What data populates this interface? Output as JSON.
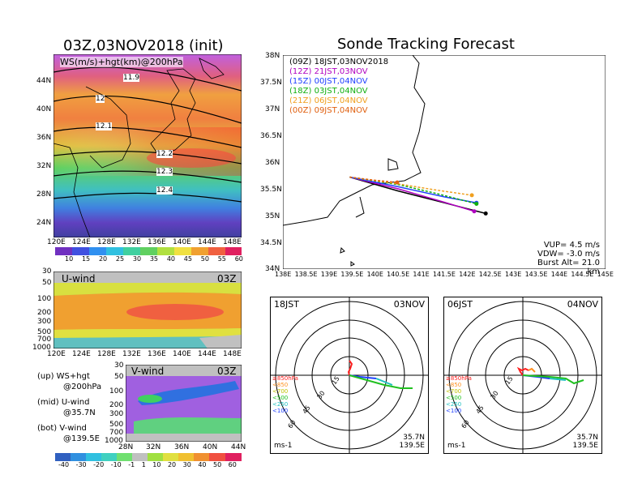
{
  "left": {
    "title": "03Z,03NOV2018 (init)",
    "map": {
      "label": "WS(m/s)+hgt(km)@200hPa",
      "lat_ticks": [
        "44N",
        "40N",
        "36N",
        "32N",
        "28N",
        "24N"
      ],
      "lon_ticks": [
        "120E",
        "124E",
        "128E",
        "132E",
        "136E",
        "140E",
        "144E",
        "148E"
      ],
      "contours": [
        "11.9",
        "12",
        "12.1",
        "12.2",
        "12.3",
        "12.4"
      ]
    },
    "ws_colorbar": [
      "10",
      "15",
      "20",
      "25",
      "30",
      "35",
      "40",
      "45",
      "50",
      "55",
      "60"
    ],
    "uwind": {
      "label": "U-wind",
      "time": "03Z",
      "p_ticks": [
        "30",
        "50",
        "100",
        "200",
        "300",
        "500",
        "700",
        "1000"
      ],
      "lon_ticks": [
        "120E",
        "124E",
        "128E",
        "132E",
        "136E",
        "140E",
        "144E",
        "148E"
      ]
    },
    "vwind": {
      "label": "V-wind",
      "time": "03Z",
      "p_ticks": [
        "30",
        "50",
        "100",
        "200",
        "300",
        "500",
        "700",
        "1000"
      ],
      "lat_ticks": [
        "28N",
        "32N",
        "36N",
        "40N",
        "44N"
      ]
    },
    "legend": {
      "up": "(up) WS+hgt",
      "up2": "@200hPa",
      "mid": "(mid) U-wind",
      "mid2": "@35.7N",
      "bot": "(bot) V-wind",
      "bot2": "@139.5E"
    },
    "wind_colorbar": [
      "-40",
      "-30",
      "-20",
      "-10",
      "-1",
      "1",
      "10",
      "20",
      "30",
      "40",
      "50",
      "60"
    ]
  },
  "tracking": {
    "title": "Sonde Tracking Forecast",
    "lat_ticks": [
      "38N",
      "37.5N",
      "37N",
      "36.5N",
      "36N",
      "35.5N",
      "35N",
      "34.5N",
      "34N"
    ],
    "lon_ticks": [
      "138E",
      "138.5E",
      "139E",
      "139.5E",
      "140E",
      "140.5E",
      "141E",
      "141.5E",
      "142E",
      "142.5E",
      "143E",
      "143.5E",
      "144E",
      "144.5E",
      "145E"
    ],
    "legend": [
      {
        "code": "(09Z)",
        "time": "18JST,03NOV2018",
        "color": "#000000"
      },
      {
        "code": "(12Z)",
        "time": "21JST,03NOV",
        "color": "#b000c0"
      },
      {
        "code": "(15Z)",
        "time": "00JST,04NOV",
        "color": "#2040ff"
      },
      {
        "code": "(18Z)",
        "time": "03JST,04NOV",
        "color": "#10b010"
      },
      {
        "code": "(21Z)",
        "time": "06JST,04NOV",
        "color": "#f0a020"
      },
      {
        "code": "(00Z)",
        "time": "09JST,04NOV",
        "color": "#e06010"
      }
    ],
    "info": {
      "vup": "VUP= 4.5 m/s",
      "vdw": "VDW= -3.0 m/s",
      "burst": "Burst Alt= 21.0 km"
    }
  },
  "hodographs": [
    {
      "time": "18JST",
      "date": "03NOV",
      "ring_labels": [
        "15",
        "30",
        "45",
        "60"
      ],
      "levels": [
        {
          "label": "≥850hPa",
          "color": "#ff2020"
        },
        {
          "label": "<850",
          "color": "#ff9020"
        },
        {
          "label": "<700",
          "color": "#e0e020"
        },
        {
          "label": "<500",
          "color": "#20c020"
        },
        {
          "label": "<250",
          "color": "#20c0c0"
        },
        {
          "label": "<100",
          "color": "#2040ff"
        }
      ],
      "units": "ms-1",
      "lat": "35.7N",
      "lon": "139.5E"
    },
    {
      "time": "06JST",
      "date": "04NOV",
      "ring_labels": [
        "15",
        "30",
        "45",
        "60"
      ],
      "levels": [
        {
          "label": "≥850hPa",
          "color": "#ff2020"
        },
        {
          "label": "<850",
          "color": "#ff9020"
        },
        {
          "label": "<700",
          "color": "#e0e020"
        },
        {
          "label": "<500",
          "color": "#20c020"
        },
        {
          "label": "<250",
          "color": "#20c0c0"
        },
        {
          "label": "<100",
          "color": "#2040ff"
        }
      ],
      "units": "ms-1",
      "lat": "35.7N",
      "lon": "139.5E"
    }
  ],
  "chart_data": [
    {
      "type": "line",
      "title": "Sonde Tracking Forecast",
      "xlabel": "",
      "ylabel": "",
      "xlim": [
        138,
        145
      ],
      "ylim": [
        34,
        38
      ],
      "series": [
        {
          "name": "(09Z) 18JST,03NOV2018",
          "x": [
            139.45,
            140.5,
            141.5,
            142.4
          ],
          "y": [
            35.72,
            35.46,
            35.24,
            35.04
          ]
        },
        {
          "name": "(12Z) 21JST,03NOV",
          "x": [
            139.45,
            140.5,
            141.5,
            142.15
          ],
          "y": [
            35.72,
            35.5,
            35.25,
            35.08
          ]
        },
        {
          "name": "(15Z) 00JST,04NOV",
          "x": [
            139.45,
            140.5,
            141.5,
            142.2
          ],
          "y": [
            35.72,
            35.54,
            35.35,
            35.24
          ]
        },
        {
          "name": "(18Z) 03JST,04NOV",
          "x": [
            139.45,
            140.5,
            141.3,
            142.2
          ],
          "y": [
            35.72,
            35.58,
            35.42,
            35.22
          ]
        },
        {
          "name": "(21Z) 06JST,04NOV",
          "x": [
            139.45,
            140.45,
            141.3,
            142.1
          ],
          "y": [
            35.72,
            35.6,
            35.48,
            35.38
          ]
        },
        {
          "name": "(00Z) 09JST,04NOV",
          "x": [
            139.45,
            140.0,
            140.48
          ],
          "y": [
            35.72,
            35.66,
            35.62
          ]
        }
      ]
    }
  ]
}
